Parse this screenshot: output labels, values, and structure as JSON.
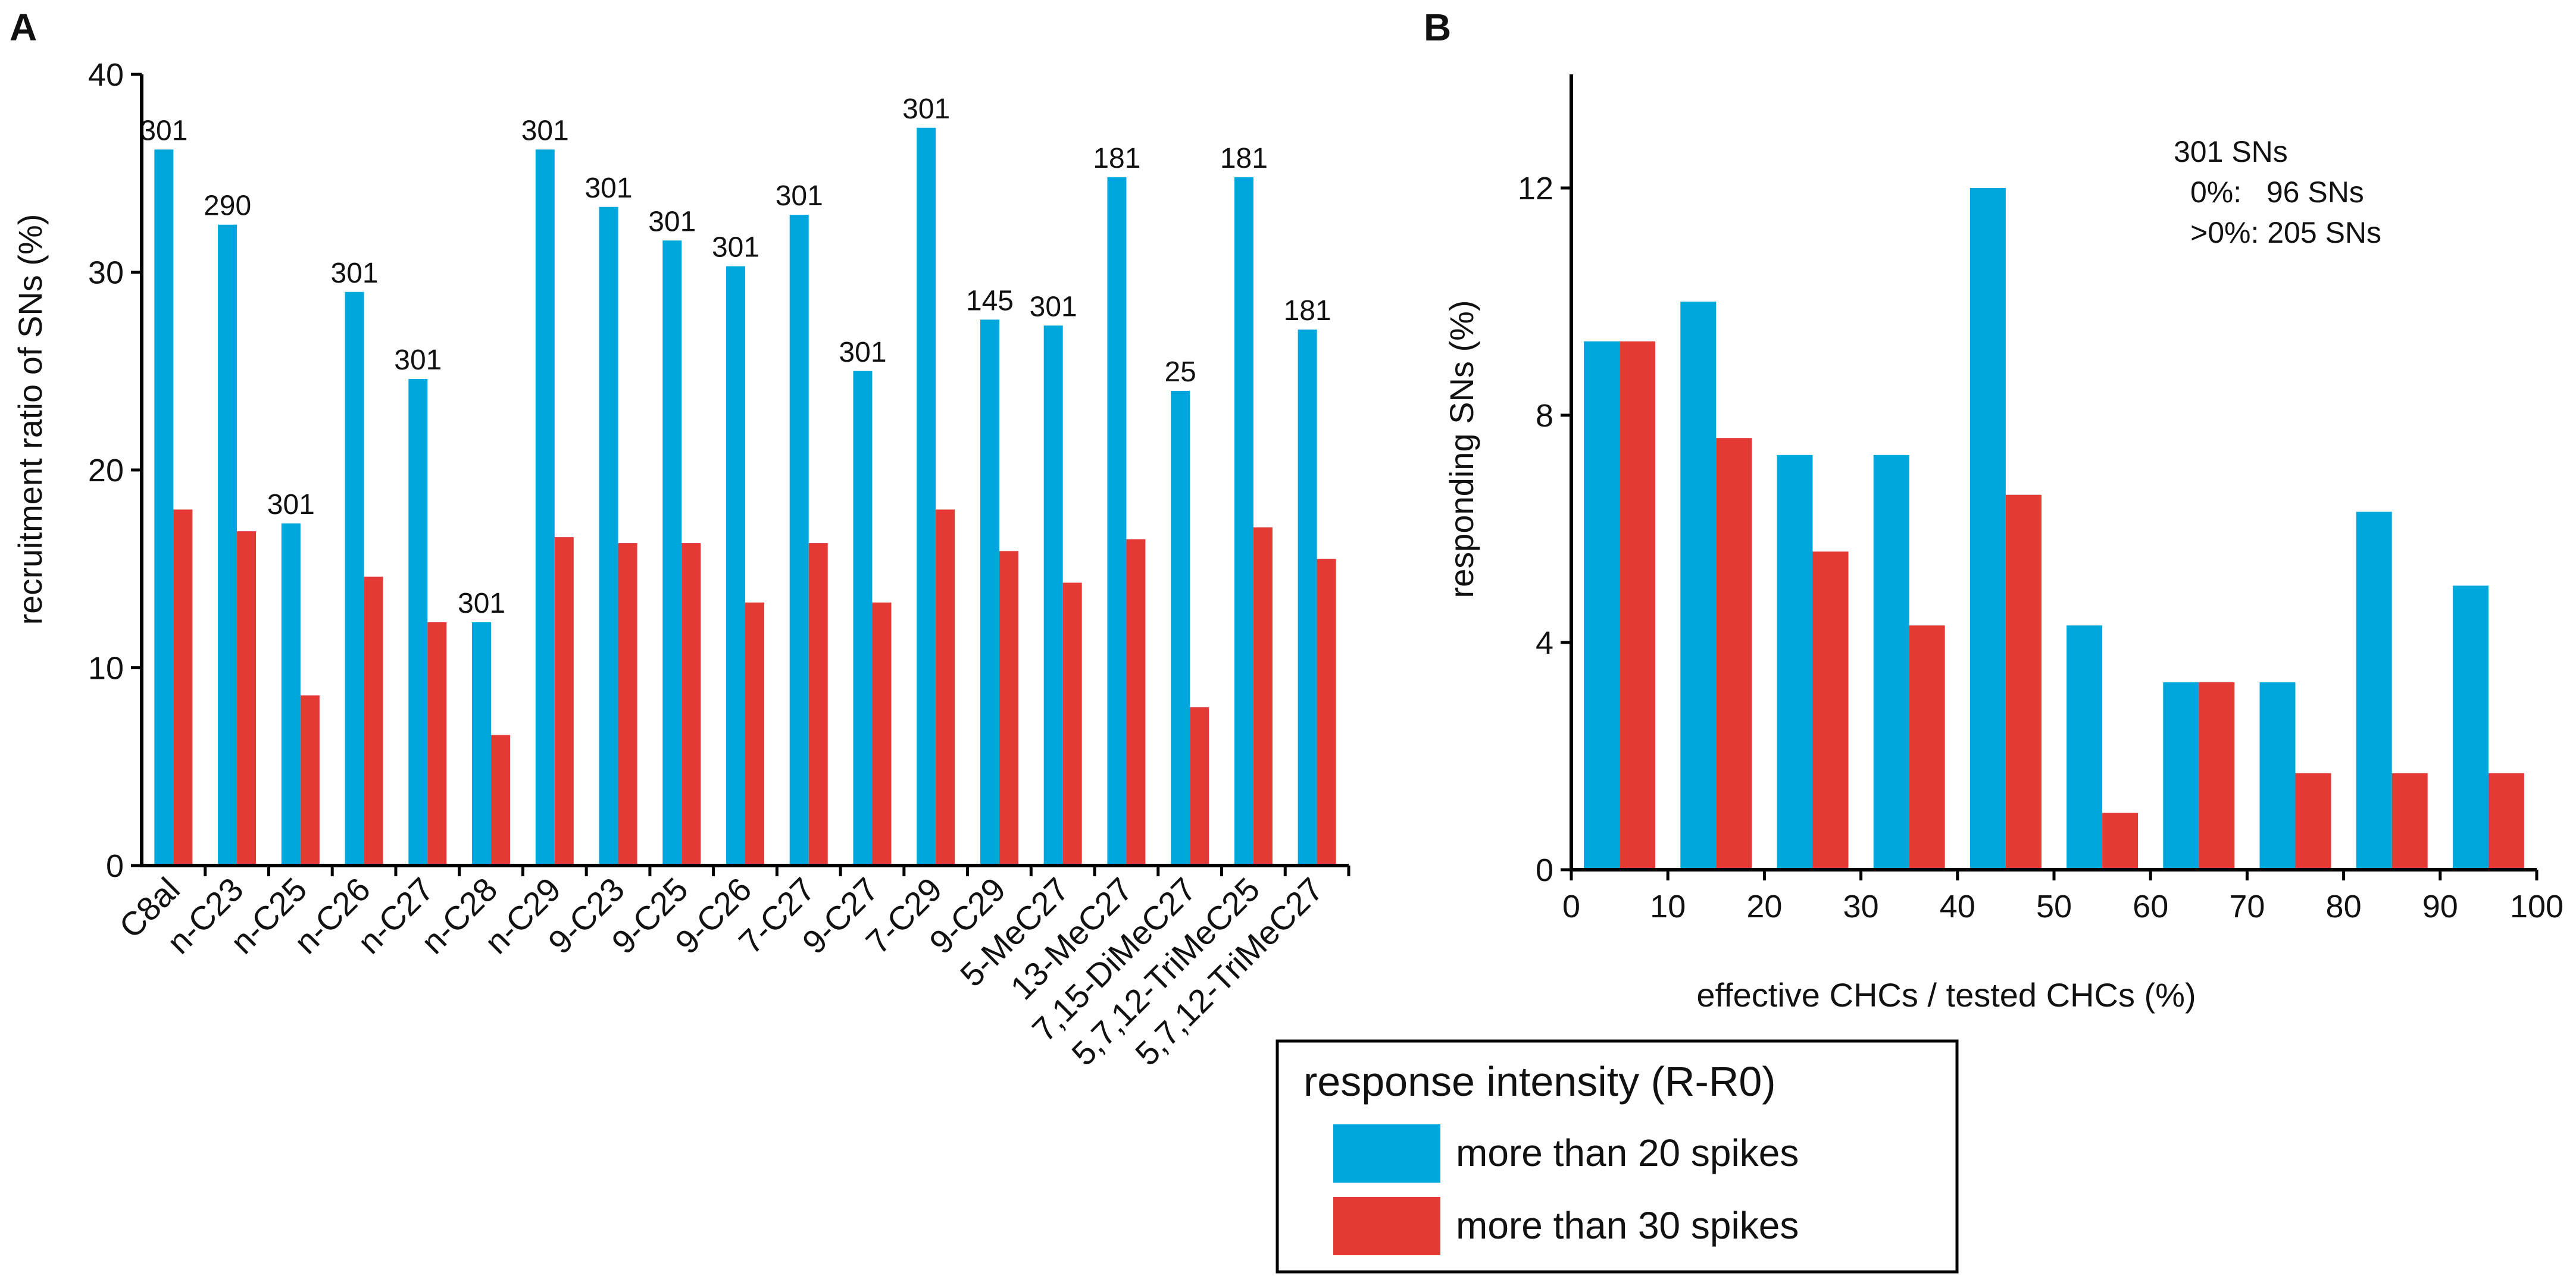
{
  "colors": {
    "series1": "#00a7dc",
    "series2": "#e53935"
  },
  "chart_data": [
    {
      "panel": "A",
      "type": "bar",
      "ylabel": "recruitment ratio of SNs (%)",
      "xlabel": "",
      "ylim": [
        0,
        40
      ],
      "yticks": [
        "0",
        "10",
        "20",
        "30",
        "40"
      ],
      "categories": [
        "C8al",
        "n-C23",
        "n-C25",
        "n-C26",
        "n-C27",
        "n-C28",
        "n-C29",
        "9-C23",
        "9-C25",
        "9-C26",
        "7-C27",
        "9-C27",
        "7-C29",
        "9-C29",
        "5-MeC27",
        "13-MeC27",
        "7,15-DiMeC27",
        "5,7,12-TriMeC25",
        "5,7,12-TriMeC27"
      ],
      "bar_labels": [
        "301",
        "290",
        "301",
        "301",
        "301",
        "301",
        "301",
        "301",
        "301",
        "301",
        "301",
        "301",
        "301",
        "145",
        "301",
        "181",
        "25",
        "181",
        "181"
      ],
      "series": [
        {
          "name": "more than 20 spikes",
          "values": [
            36.2,
            32.4,
            17.3,
            29.0,
            24.6,
            12.3,
            36.2,
            33.3,
            31.6,
            30.3,
            32.9,
            25.0,
            37.3,
            27.6,
            27.3,
            34.8,
            24.0,
            34.8,
            27.1
          ]
        },
        {
          "name": "more than 30 spikes",
          "values": [
            18.0,
            16.9,
            8.6,
            14.6,
            12.3,
            6.6,
            16.6,
            16.3,
            16.3,
            13.3,
            16.3,
            13.3,
            18.0,
            15.9,
            14.3,
            16.5,
            8.0,
            17.1,
            15.5
          ]
        }
      ]
    },
    {
      "panel": "B",
      "type": "bar",
      "ylabel": "responding SNs (%)",
      "xlabel": "effective CHCs / tested CHCs (%)",
      "ylim": [
        0,
        14
      ],
      "yticks": [
        "0",
        "4",
        "8",
        "12"
      ],
      "xlim": [
        0,
        100
      ],
      "xticks": [
        "0",
        "10",
        "20",
        "30",
        "40",
        "50",
        "60",
        "70",
        "80",
        "90",
        "100"
      ],
      "bins": [
        5,
        15,
        25,
        35,
        45,
        55,
        65,
        75,
        85,
        95
      ],
      "series": [
        {
          "name": "more than 20 spikes",
          "values": [
            9.3,
            10.0,
            7.3,
            7.3,
            12.0,
            4.3,
            3.3,
            3.3,
            6.3,
            5.0
          ]
        },
        {
          "name": "more than 30 spikes",
          "values": [
            9.3,
            7.6,
            5.6,
            4.3,
            6.6,
            1.0,
            3.3,
            1.7,
            1.7,
            1.7
          ]
        }
      ],
      "annotation": [
        "301 SNs",
        "0%:   96 SNs",
        ">0%: 205 SNs"
      ]
    }
  ],
  "legend": {
    "title": "response intensity (R-R0)",
    "items": [
      "more than 20 spikes",
      "more than 30 spikes"
    ]
  }
}
